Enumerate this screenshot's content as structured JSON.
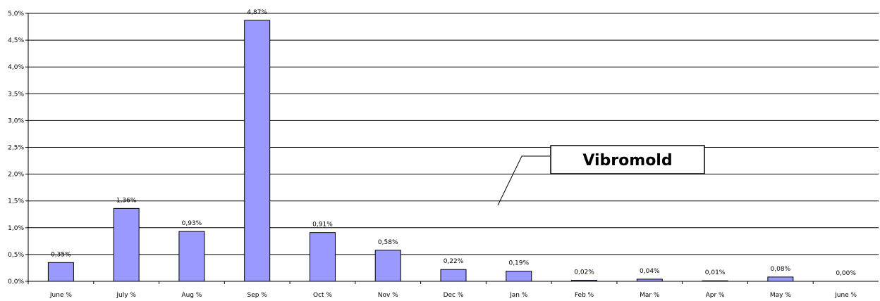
{
  "chart_data": {
    "type": "bar",
    "categories": [
      "June %",
      "July %",
      "Aug %",
      "Sep %",
      "Oct %",
      "Nov %",
      "Dec %",
      "Jan %",
      "Feb %",
      "Mar %",
      "Apr %",
      "May %",
      "June %"
    ],
    "values": [
      0.35,
      1.36,
      0.93,
      4.87,
      0.91,
      0.58,
      0.22,
      0.19,
      0.02,
      0.04,
      0.01,
      0.08,
      0.0
    ],
    "data_labels": [
      "0,35%",
      "1,36%",
      "0,93%",
      "4,87%",
      "0,91%",
      "0,58%",
      "0,22%",
      "0,19%",
      "0,02%",
      "0,04%",
      "0,01%",
      "0,08%",
      "0,00%"
    ],
    "yticks": [
      0,
      0.5,
      1.0,
      1.5,
      2.0,
      2.5,
      3.0,
      3.5,
      4.0,
      4.5,
      5.0
    ],
    "ytick_labels": [
      "0,0%",
      "0,5%",
      "1,0%",
      "1,5%",
      "2,0%",
      "2,5%",
      "3,0%",
      "3,5%",
      "4,0%",
      "4,5%",
      "5,0%"
    ],
    "ylim": [
      0,
      5.0
    ],
    "grid": true,
    "annotation": "Vibromold",
    "colors": {
      "bar": "#9999ff",
      "bar_border": "#000000",
      "grid": "#000000"
    }
  }
}
